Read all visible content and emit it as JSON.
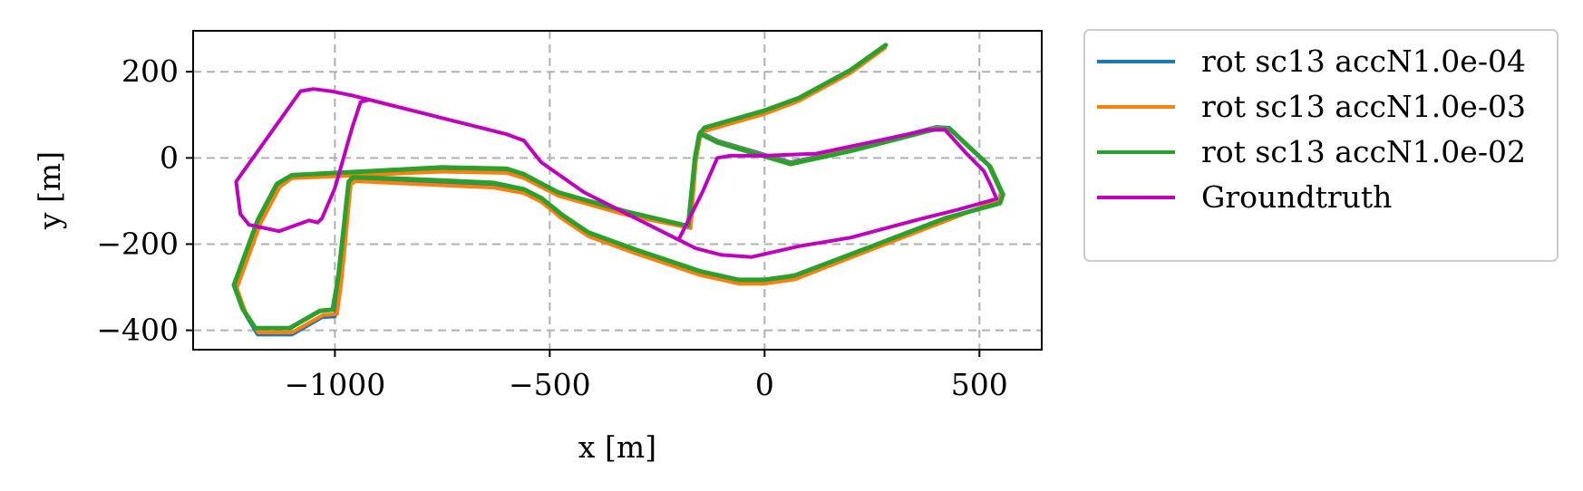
{
  "chart_data": {
    "type": "line",
    "title": "",
    "xlabel": "x [m]",
    "ylabel": "y [m]",
    "xlim": [
      -1330,
      645
    ],
    "ylim": [
      -445,
      295
    ],
    "xticks": [
      -1000,
      -500,
      0,
      500
    ],
    "xtick_labels": [
      "−1000",
      "−500",
      "0",
      "500"
    ],
    "yticks": [
      200,
      0,
      -200,
      -400
    ],
    "ytick_labels": [
      "200",
      "0",
      "−200",
      "−400"
    ],
    "grid": true,
    "legend_placement": "outside-upper-right",
    "series": [
      {
        "name": "rot sc13 accN1.0e-04",
        "color": "#1f77b4",
        "points": [
          [
            280,
            258
          ],
          [
            200,
            200
          ],
          [
            80,
            135
          ],
          [
            0,
            105
          ],
          [
            -140,
            65
          ],
          [
            -150,
            50
          ],
          [
            -160,
            -5
          ],
          [
            -175,
            -160
          ],
          [
            -320,
            -130
          ],
          [
            -480,
            -85
          ],
          [
            -560,
            -45
          ],
          [
            -600,
            -32
          ],
          [
            -750,
            -30
          ],
          [
            -1100,
            -45
          ],
          [
            -1130,
            -65
          ],
          [
            -1175,
            -150
          ],
          [
            -1230,
            -300
          ],
          [
            -1210,
            -360
          ],
          [
            -1180,
            -410
          ],
          [
            -1100,
            -410
          ],
          [
            -1030,
            -370
          ],
          [
            -1000,
            -368
          ],
          [
            -990,
            -290
          ],
          [
            -975,
            -155
          ],
          [
            -965,
            -60
          ],
          [
            -955,
            -52
          ],
          [
            -850,
            -57
          ],
          [
            -630,
            -67
          ],
          [
            -560,
            -80
          ],
          [
            -520,
            -100
          ],
          [
            -470,
            -140
          ],
          [
            -410,
            -180
          ],
          [
            -300,
            -220
          ],
          [
            -150,
            -270
          ],
          [
            -60,
            -290
          ],
          [
            0,
            -290
          ],
          [
            70,
            -280
          ],
          [
            250,
            -210
          ],
          [
            420,
            -145
          ],
          [
            545,
            -100
          ],
          [
            550,
            -80
          ],
          [
            520,
            -15
          ],
          [
            430,
            70
          ],
          [
            400,
            72
          ],
          [
            200,
            20
          ],
          [
            60,
            -10
          ],
          [
            -110,
            40
          ],
          [
            -150,
            60
          ]
        ]
      },
      {
        "name": "rot sc13 accN1.0e-03",
        "color": "#ff7f0e",
        "points": [
          [
            280,
            255
          ],
          [
            200,
            197
          ],
          [
            80,
            132
          ],
          [
            0,
            102
          ],
          [
            -140,
            62
          ],
          [
            -150,
            47
          ],
          [
            -160,
            -8
          ],
          [
            -172,
            -163
          ],
          [
            -320,
            -133
          ],
          [
            -480,
            -88
          ],
          [
            -560,
            -47
          ],
          [
            -600,
            -35
          ],
          [
            -750,
            -32
          ],
          [
            -1100,
            -47
          ],
          [
            -1128,
            -67
          ],
          [
            -1173,
            -152
          ],
          [
            -1228,
            -302
          ],
          [
            -1208,
            -358
          ],
          [
            -1178,
            -405
          ],
          [
            -1100,
            -405
          ],
          [
            -1028,
            -365
          ],
          [
            -995,
            -362
          ],
          [
            -985,
            -288
          ],
          [
            -972,
            -155
          ],
          [
            -963,
            -62
          ],
          [
            -953,
            -54
          ],
          [
            -850,
            -59
          ],
          [
            -630,
            -69
          ],
          [
            -560,
            -82
          ],
          [
            -520,
            -102
          ],
          [
            -470,
            -142
          ],
          [
            -410,
            -182
          ],
          [
            -300,
            -222
          ],
          [
            -150,
            -272
          ],
          [
            -60,
            -292
          ],
          [
            0,
            -292
          ],
          [
            70,
            -282
          ],
          [
            250,
            -212
          ],
          [
            420,
            -147
          ],
          [
            545,
            -98
          ],
          [
            552,
            -82
          ],
          [
            522,
            -17
          ],
          [
            430,
            68
          ],
          [
            400,
            70
          ],
          [
            200,
            18
          ],
          [
            60,
            -12
          ],
          [
            -110,
            38
          ],
          [
            -150,
            58
          ]
        ]
      },
      {
        "name": "rot sc13 accN1.0e-02",
        "color": "#2ca02c",
        "points": [
          [
            282,
            262
          ],
          [
            200,
            204
          ],
          [
            80,
            139
          ],
          [
            0,
            110
          ],
          [
            -140,
            70
          ],
          [
            -152,
            55
          ],
          [
            -162,
            0
          ],
          [
            -178,
            -158
          ],
          [
            -320,
            -125
          ],
          [
            -480,
            -80
          ],
          [
            -560,
            -38
          ],
          [
            -600,
            -25
          ],
          [
            -750,
            -22
          ],
          [
            -1100,
            -40
          ],
          [
            -1135,
            -60
          ],
          [
            -1180,
            -145
          ],
          [
            -1235,
            -295
          ],
          [
            -1215,
            -350
          ],
          [
            -1185,
            -395
          ],
          [
            -1105,
            -395
          ],
          [
            -1035,
            -355
          ],
          [
            -1005,
            -352
          ],
          [
            -992,
            -275
          ],
          [
            -978,
            -150
          ],
          [
            -968,
            -55
          ],
          [
            -958,
            -45
          ],
          [
            -850,
            -48
          ],
          [
            -630,
            -58
          ],
          [
            -560,
            -73
          ],
          [
            -520,
            -93
          ],
          [
            -470,
            -133
          ],
          [
            -410,
            -173
          ],
          [
            -300,
            -213
          ],
          [
            -150,
            -263
          ],
          [
            -60,
            -283
          ],
          [
            0,
            -283
          ],
          [
            70,
            -273
          ],
          [
            250,
            -205
          ],
          [
            420,
            -140
          ],
          [
            548,
            -105
          ],
          [
            555,
            -85
          ],
          [
            525,
            -20
          ],
          [
            432,
            66
          ],
          [
            402,
            68
          ],
          [
            200,
            16
          ],
          [
            60,
            -14
          ],
          [
            -110,
            36
          ],
          [
            -150,
            56
          ]
        ]
      },
      {
        "name": "Groundtruth",
        "color": "#bf00bf",
        "points": [
          [
            -200,
            -190
          ],
          [
            -145,
            -80
          ],
          [
            -110,
            0
          ],
          [
            -80,
            5
          ],
          [
            0,
            5
          ],
          [
            120,
            10
          ],
          [
            240,
            35
          ],
          [
            380,
            65
          ],
          [
            420,
            65
          ],
          [
            470,
            10
          ],
          [
            510,
            -30
          ],
          [
            525,
            -60
          ],
          [
            540,
            -95
          ],
          [
            450,
            -120
          ],
          [
            350,
            -145
          ],
          [
            200,
            -185
          ],
          [
            80,
            -205
          ],
          [
            -30,
            -230
          ],
          [
            -100,
            -225
          ],
          [
            -160,
            -210
          ],
          [
            -200,
            -190
          ],
          [
            -330,
            -125
          ],
          [
            -420,
            -80
          ],
          [
            -520,
            -10
          ],
          [
            -560,
            40
          ],
          [
            -600,
            55
          ],
          [
            -700,
            80
          ],
          [
            -900,
            130
          ],
          [
            -920,
            135
          ],
          [
            -960,
            145
          ],
          [
            -1010,
            155
          ],
          [
            -1050,
            160
          ],
          [
            -1080,
            155
          ],
          [
            -1230,
            -55
          ],
          [
            -1220,
            -130
          ],
          [
            -1200,
            -155
          ],
          [
            -1130,
            -170
          ],
          [
            -1060,
            -145
          ],
          [
            -1040,
            -150
          ],
          [
            -1030,
            -140
          ],
          [
            -1000,
            -70
          ],
          [
            -960,
            70
          ],
          [
            -940,
            130
          ],
          [
            -920,
            135
          ],
          [
            -900,
            130
          ]
        ]
      }
    ]
  }
}
